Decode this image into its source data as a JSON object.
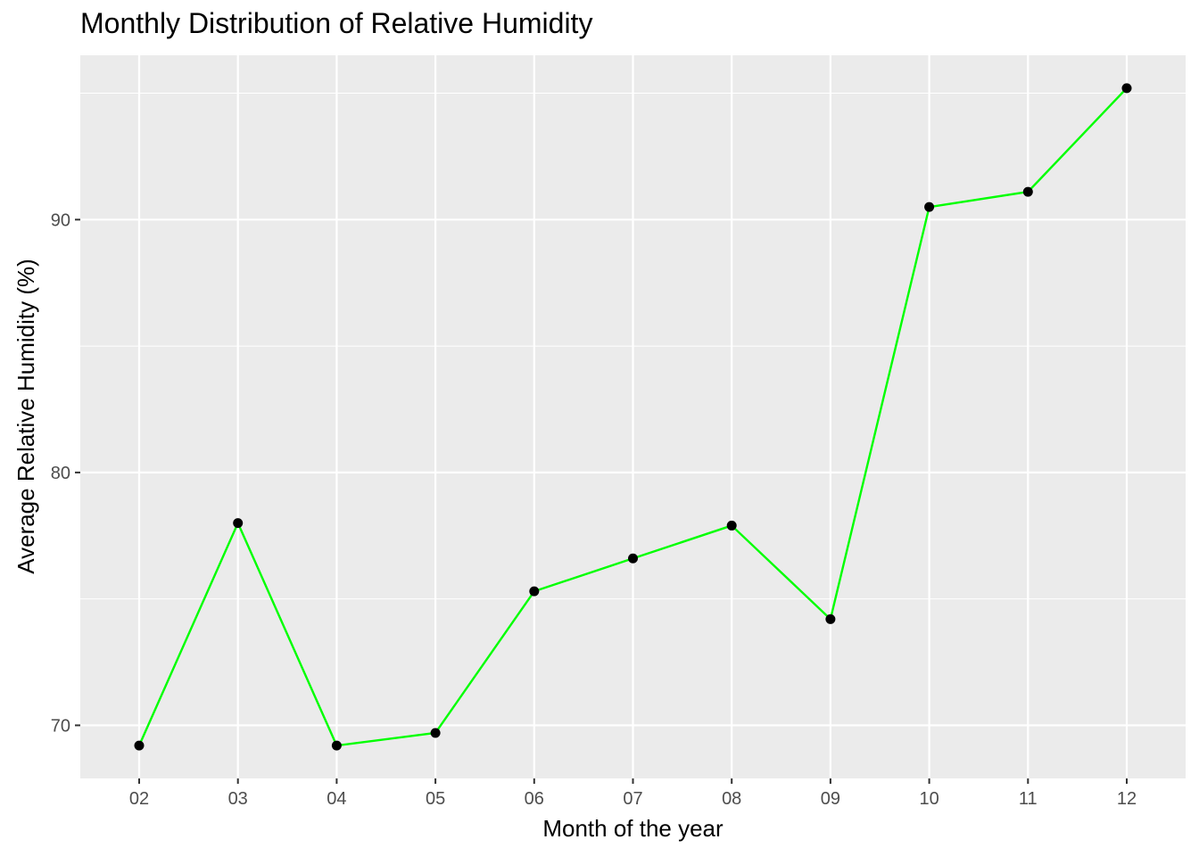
{
  "chart_data": {
    "type": "line",
    "title": "Monthly Distribution of Relative Humidity",
    "xlabel": "Month of the year",
    "ylabel": "Average Relative Humidity (%)",
    "categories": [
      "02",
      "03",
      "04",
      "05",
      "06",
      "07",
      "08",
      "09",
      "10",
      "11",
      "12"
    ],
    "series": [
      {
        "values": [
          69.2,
          78.0,
          69.2,
          69.7,
          75.3,
          76.6,
          77.9,
          74.2,
          90.5,
          91.1,
          95.2
        ]
      }
    ],
    "y_ticks": [
      "70",
      "80",
      "90"
    ],
    "ylim": [
      67.9,
      96.5
    ],
    "grid": true,
    "colors": {
      "line": "#00ff00",
      "points": "#000000",
      "panel": "#ebebeb",
      "grid": "#ffffff"
    }
  }
}
